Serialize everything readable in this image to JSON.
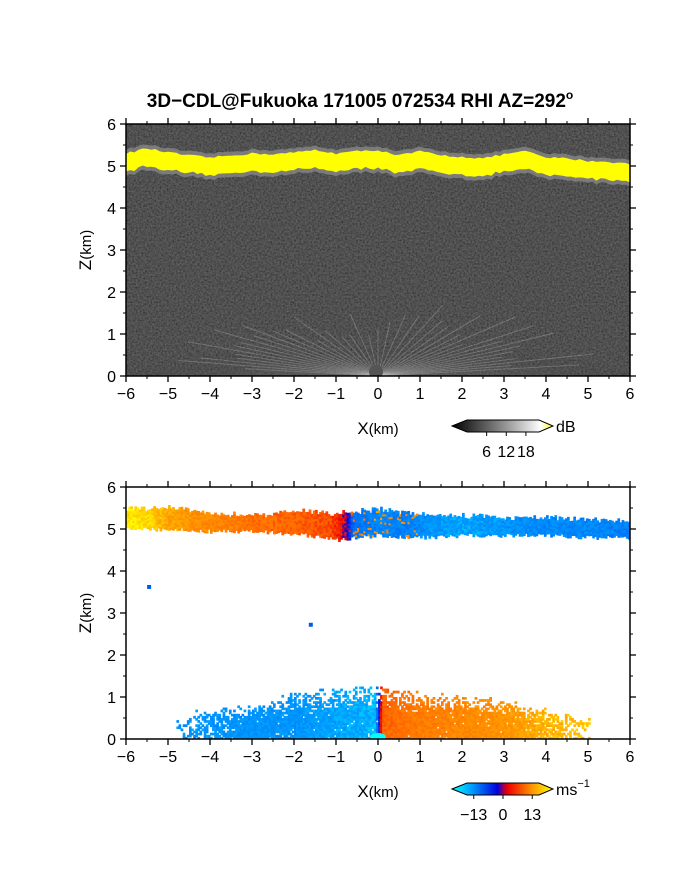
{
  "chart_data": [
    {
      "type": "heatmap",
      "title_main": "3D−CDL@Fukuoka 171005 072534 RHI AZ=292",
      "title_sup": "o",
      "variable": "backscatter",
      "xlabel": "X",
      "xlabel_unit": "(km)",
      "ylabel": "Z",
      "ylabel_unit": "(km)",
      "xlim": [
        -6,
        6
      ],
      "ylim": [
        0,
        6
      ],
      "xticks": [
        "−6",
        "−5",
        "−4",
        "−3",
        "−2",
        "−1",
        "0",
        "1",
        "2",
        "3",
        "4",
        "5",
        "6"
      ],
      "yticks": [
        "0",
        "1",
        "2",
        "3",
        "4",
        "5",
        "6"
      ],
      "colorbar": {
        "unit": "dB",
        "ticks": [
          "6",
          "12",
          "18"
        ],
        "tick_values": [
          6,
          12,
          18
        ],
        "range": [
          0,
          22
        ]
      },
      "layer_top_km": [
        [
          -6,
          5.3
        ],
        [
          -5.5,
          5.42
        ],
        [
          -5,
          5.32
        ],
        [
          -4.5,
          5.25
        ],
        [
          -4,
          5.2
        ],
        [
          -3.5,
          5.25
        ],
        [
          -3,
          5.3
        ],
        [
          -2.5,
          5.28
        ],
        [
          -2,
          5.32
        ],
        [
          -1.5,
          5.38
        ],
        [
          -1,
          5.3
        ],
        [
          -0.5,
          5.35
        ],
        [
          0,
          5.38
        ],
        [
          0.5,
          5.25
        ],
        [
          1,
          5.35
        ],
        [
          1.5,
          5.25
        ],
        [
          2,
          5.22
        ],
        [
          2.5,
          5.18
        ],
        [
          3,
          5.28
        ],
        [
          3.5,
          5.35
        ],
        [
          4,
          5.2
        ],
        [
          4.5,
          5.18
        ],
        [
          5,
          5.12
        ],
        [
          5.5,
          5.1
        ],
        [
          6,
          5.05
        ]
      ],
      "layer_thickness_km": 0.42,
      "boundary_layer_top_km": 1.3
    },
    {
      "type": "heatmap",
      "variable": "radial_velocity",
      "xlabel": "X",
      "xlabel_unit": "(km)",
      "ylabel": "Z",
      "ylabel_unit": "(km)",
      "xlim": [
        -6,
        6
      ],
      "ylim": [
        0,
        6
      ],
      "xticks": [
        "−6",
        "−5",
        "−4",
        "−3",
        "−2",
        "−1",
        "0",
        "1",
        "2",
        "3",
        "4",
        "5",
        "6"
      ],
      "yticks": [
        "0",
        "1",
        "2",
        "3",
        "4",
        "5",
        "6"
      ],
      "colorbar": {
        "unit": "ms",
        "unit_sup": "−1",
        "ticks": [
          "−13",
          "0",
          "13"
        ],
        "tick_values": [
          -13,
          0,
          13
        ],
        "range": [
          -16,
          16
        ]
      },
      "cloud_velocity_ms": [
        [
          -6,
          15
        ],
        [
          -5.5,
          14
        ],
        [
          -5,
          11
        ],
        [
          -4,
          9
        ],
        [
          -3,
          7
        ],
        [
          -2,
          6
        ],
        [
          -1.2,
          5
        ],
        [
          -0.8,
          1
        ],
        [
          -0.6,
          -8
        ],
        [
          0,
          -10
        ],
        [
          0.6,
          -9
        ],
        [
          1.2,
          -11
        ],
        [
          2,
          -12
        ],
        [
          3,
          -11
        ],
        [
          4,
          -10
        ],
        [
          5,
          -10
        ],
        [
          6,
          -9
        ]
      ],
      "cloud_top_km": [
        [
          -6,
          5.45
        ],
        [
          -5,
          5.5
        ],
        [
          -4,
          5.35
        ],
        [
          -3,
          5.3
        ],
        [
          -2,
          5.4
        ],
        [
          -1,
          5.35
        ],
        [
          0,
          5.45
        ],
        [
          1,
          5.35
        ],
        [
          2,
          5.3
        ],
        [
          3,
          5.25
        ],
        [
          4,
          5.25
        ],
        [
          5,
          5.2
        ],
        [
          6,
          5.15
        ]
      ],
      "cloud_bottom_km": [
        [
          -6,
          5.0
        ],
        [
          -5,
          5.0
        ],
        [
          -4,
          4.95
        ],
        [
          -3,
          4.95
        ],
        [
          -2,
          4.9
        ],
        [
          -1,
          4.75
        ],
        [
          0,
          4.85
        ],
        [
          1,
          4.8
        ],
        [
          2,
          4.85
        ],
        [
          3,
          4.85
        ],
        [
          4,
          4.85
        ],
        [
          5,
          4.8
        ],
        [
          6,
          4.8
        ]
      ],
      "boundary_layer_velocity_ms": [
        [
          -4.8,
          -11
        ],
        [
          -3,
          -11
        ],
        [
          -2,
          -11
        ],
        [
          -1,
          -12
        ],
        [
          -0.1,
          -13
        ],
        [
          0.1,
          6
        ],
        [
          1,
          8
        ],
        [
          2,
          9
        ],
        [
          3,
          10
        ],
        [
          4,
          12
        ],
        [
          5,
          13
        ]
      ],
      "boundary_layer_extent_km": [
        [
          -4.8,
          0.6
        ],
        [
          -4,
          0.7
        ],
        [
          -3,
          0.8
        ],
        [
          -2,
          1.1
        ],
        [
          -1,
          1.2
        ],
        [
          0,
          1.25
        ],
        [
          1,
          1.1
        ],
        [
          2,
          1.0
        ],
        [
          3,
          0.95
        ],
        [
          4,
          0.7
        ],
        [
          5,
          0.5
        ]
      ],
      "isolated_points": [
        {
          "x": -5.45,
          "z": 3.62,
          "v": -6
        },
        {
          "x": -1.6,
          "z": 2.72,
          "v": -6
        }
      ]
    }
  ]
}
